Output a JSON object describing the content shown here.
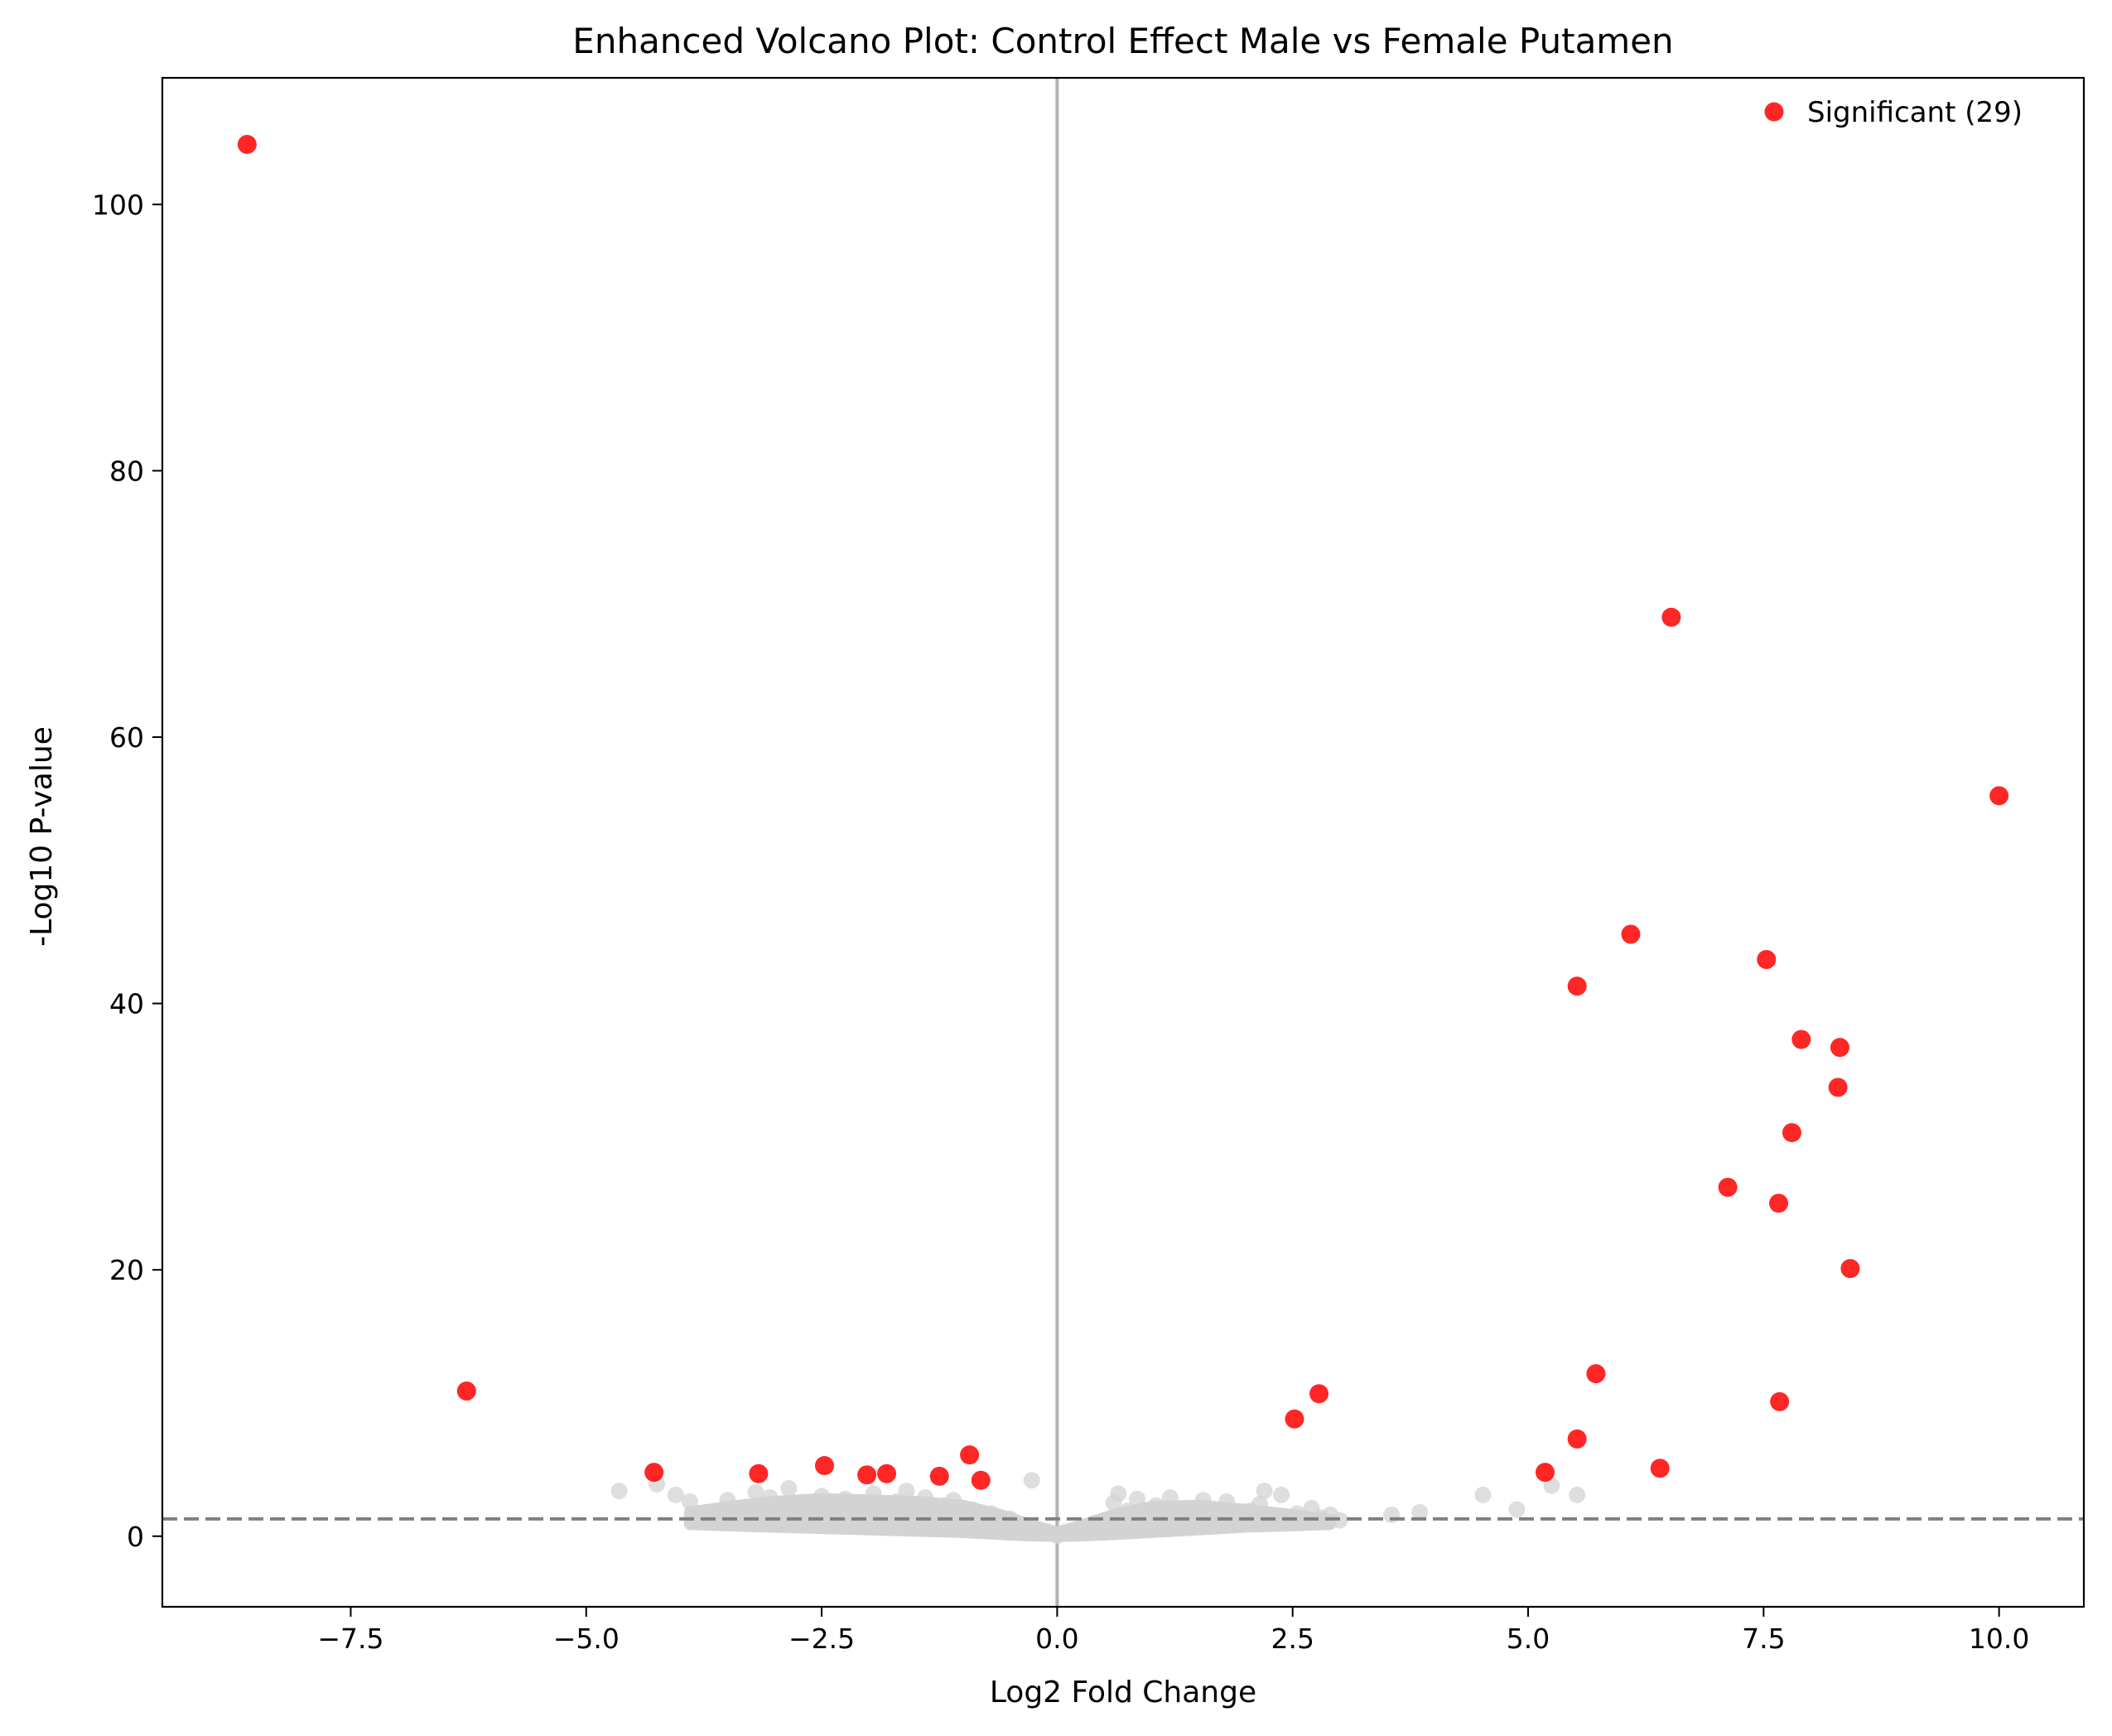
{
  "chart_data": {
    "type": "scatter",
    "title": "Enhanced Volcano Plot: Control Effect Male vs Female Putamen",
    "xlabel": "Log2 Fold Change",
    "ylabel": "-Log10 P-value",
    "xlim": [
      -9.5,
      10.9
    ],
    "ylim": [
      -5.3,
      109.5
    ],
    "xticks": [
      -7.5,
      -5.0,
      -2.5,
      0.0,
      2.5,
      5.0,
      7.5,
      10.0
    ],
    "xtick_labels": [
      "−7.5",
      "−5.0",
      "−2.5",
      "0.0",
      "2.5",
      "5.0",
      "7.5",
      "10.0"
    ],
    "yticks": [
      0,
      20,
      40,
      60,
      80,
      100
    ],
    "ytick_labels": [
      "0",
      "20",
      "40",
      "60",
      "80",
      "100"
    ],
    "grid": false,
    "legend_position": "top-right",
    "threshold_y": 1.3,
    "vertical_line_x": 0,
    "colors": {
      "significant": "#ff0000",
      "nonsignificant": "#d3d3d3",
      "threshold_line": "#808080",
      "vertical_line": "#b3b3b3"
    },
    "legend": [
      {
        "label": "Significant (29)",
        "color": "#ff0000"
      }
    ],
    "series": [
      {
        "name": "Significant (29)",
        "points": [
          {
            "x": -8.6,
            "y": 104.5
          },
          {
            "x": -6.27,
            "y": 10.9
          },
          {
            "x": -4.28,
            "y": 4.8
          },
          {
            "x": -3.17,
            "y": 4.7
          },
          {
            "x": -2.47,
            "y": 5.3
          },
          {
            "x": -2.02,
            "y": 4.6
          },
          {
            "x": -1.81,
            "y": 4.7
          },
          {
            "x": -1.25,
            "y": 4.5
          },
          {
            "x": -0.93,
            "y": 6.1
          },
          {
            "x": -0.81,
            "y": 4.2
          },
          {
            "x": 2.52,
            "y": 8.8
          },
          {
            "x": 2.78,
            "y": 10.7
          },
          {
            "x": 5.18,
            "y": 4.8
          },
          {
            "x": 5.52,
            "y": 7.3
          },
          {
            "x": 5.52,
            "y": 41.3
          },
          {
            "x": 5.72,
            "y": 12.2
          },
          {
            "x": 6.09,
            "y": 45.2
          },
          {
            "x": 6.4,
            "y": 5.1
          },
          {
            "x": 6.52,
            "y": 69.0
          },
          {
            "x": 7.12,
            "y": 26.2
          },
          {
            "x": 7.53,
            "y": 43.3
          },
          {
            "x": 7.66,
            "y": 25.0
          },
          {
            "x": 7.67,
            "y": 10.1
          },
          {
            "x": 7.8,
            "y": 30.3
          },
          {
            "x": 7.9,
            "y": 37.3
          },
          {
            "x": 8.29,
            "y": 33.7
          },
          {
            "x": 8.31,
            "y": 36.7
          },
          {
            "x": 8.42,
            "y": 20.1
          },
          {
            "x": 10.0,
            "y": 55.6
          }
        ]
      },
      {
        "points": [
          {
            "x": -4.65,
            "y": 3.4
          },
          {
            "x": -4.25,
            "y": 3.9
          },
          {
            "x": -4.05,
            "y": 3.1
          },
          {
            "x": -3.9,
            "y": 2.6
          },
          {
            "x": -3.85,
            "y": 1.2
          },
          {
            "x": -3.75,
            "y": 1.6
          },
          {
            "x": -3.65,
            "y": 1.8
          },
          {
            "x": -3.55,
            "y": 1.1
          },
          {
            "x": -3.5,
            "y": 2.7
          },
          {
            "x": -3.4,
            "y": 1.5
          },
          {
            "x": -3.3,
            "y": 2.2
          },
          {
            "x": -3.2,
            "y": 3.3
          },
          {
            "x": -3.05,
            "y": 2.9
          },
          {
            "x": -2.95,
            "y": 1.4
          },
          {
            "x": -2.85,
            "y": 3.6
          },
          {
            "x": -2.75,
            "y": 2.4
          },
          {
            "x": -2.6,
            "y": 1.9
          },
          {
            "x": -2.5,
            "y": 3.0
          },
          {
            "x": -2.35,
            "y": 1.6
          },
          {
            "x": -2.25,
            "y": 2.8
          },
          {
            "x": -2.1,
            "y": 2.1
          },
          {
            "x": -1.95,
            "y": 3.2
          },
          {
            "x": -1.8,
            "y": 1.3
          },
          {
            "x": -1.7,
            "y": 2.6
          },
          {
            "x": -1.6,
            "y": 3.4
          },
          {
            "x": -1.5,
            "y": 1.8
          },
          {
            "x": -1.4,
            "y": 2.9
          },
          {
            "x": -1.3,
            "y": 1.2
          },
          {
            "x": -1.2,
            "y": 2.3
          },
          {
            "x": -1.1,
            "y": 2.7
          },
          {
            "x": -1.0,
            "y": 1.5
          },
          {
            "x": -0.9,
            "y": 2.0
          },
          {
            "x": -0.8,
            "y": 1.1
          },
          {
            "x": -0.7,
            "y": 1.7
          },
          {
            "x": -0.6,
            "y": 0.9
          },
          {
            "x": -0.5,
            "y": 1.3
          },
          {
            "x": -0.4,
            "y": 0.6
          },
          {
            "x": -0.3,
            "y": 0.8
          },
          {
            "x": -0.27,
            "y": 4.2
          },
          {
            "x": -0.2,
            "y": 0.4
          },
          {
            "x": -0.1,
            "y": 0.2
          },
          {
            "x": 0.0,
            "y": 0.05
          },
          {
            "x": 0.1,
            "y": 0.3
          },
          {
            "x": 0.2,
            "y": 0.5
          },
          {
            "x": 0.3,
            "y": 0.7
          },
          {
            "x": 0.4,
            "y": 1.0
          },
          {
            "x": 0.5,
            "y": 1.2
          },
          {
            "x": 0.6,
            "y": 2.5
          },
          {
            "x": 0.65,
            "y": 3.2
          },
          {
            "x": 0.75,
            "y": 1.9
          },
          {
            "x": 0.85,
            "y": 2.8
          },
          {
            "x": 0.95,
            "y": 1.4
          },
          {
            "x": 1.05,
            "y": 2.3
          },
          {
            "x": 1.15,
            "y": 1.7
          },
          {
            "x": 1.2,
            "y": 2.9
          },
          {
            "x": 1.3,
            "y": 1.3
          },
          {
            "x": 1.45,
            "y": 2.1
          },
          {
            "x": 1.55,
            "y": 2.7
          },
          {
            "x": 1.7,
            "y": 1.6
          },
          {
            "x": 1.8,
            "y": 2.6
          },
          {
            "x": 1.95,
            "y": 1.2
          },
          {
            "x": 2.05,
            "y": 1.9
          },
          {
            "x": 2.15,
            "y": 2.4
          },
          {
            "x": 2.2,
            "y": 3.4
          },
          {
            "x": 2.3,
            "y": 1.5
          },
          {
            "x": 2.38,
            "y": 3.1
          },
          {
            "x": 2.45,
            "y": 1.1
          },
          {
            "x": 2.55,
            "y": 1.7
          },
          {
            "x": 2.7,
            "y": 2.1
          },
          {
            "x": 2.8,
            "y": 1.4
          },
          {
            "x": 2.9,
            "y": 1.6
          },
          {
            "x": 3.0,
            "y": 1.2
          },
          {
            "x": 3.55,
            "y": 1.6
          },
          {
            "x": 3.85,
            "y": 1.8
          },
          {
            "x": 4.52,
            "y": 3.1
          },
          {
            "x": 4.88,
            "y": 2.0
          },
          {
            "x": 5.25,
            "y": 3.8
          },
          {
            "x": 5.52,
            "y": 3.1
          }
        ]
      }
    ]
  }
}
